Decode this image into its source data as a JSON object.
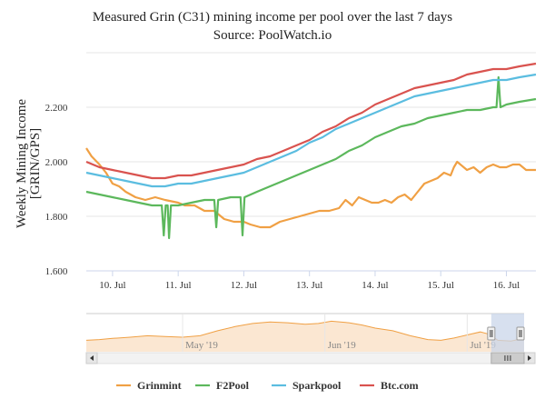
{
  "chart_data": {
    "type": "line",
    "title": "Measured Grin (C31) mining income per pool over the last 7 days",
    "subtitle": "Source: PoolWatch.io",
    "xlabel": "",
    "ylabel": "Weekly Mining Income",
    "ylabel_unit": "[GRIN/GPS]",
    "ylim": [
      1.6,
      2.4
    ],
    "yticks": [
      "1.600",
      "1.800",
      "2.000",
      "2.200"
    ],
    "xlim": [
      9.6,
      16.45
    ],
    "xticks": [
      {
        "x": 10.0,
        "label": "10. Jul"
      },
      {
        "x": 11.0,
        "label": "11. Jul"
      },
      {
        "x": 12.0,
        "label": "12. Jul"
      },
      {
        "x": 13.0,
        "label": "13. Jul"
      },
      {
        "x": 14.0,
        "label": "14. Jul"
      },
      {
        "x": 15.0,
        "label": "15. Jul"
      },
      {
        "x": 16.0,
        "label": "16. Jul"
      }
    ],
    "grid": "horizontal",
    "legend_position": "bottom",
    "series": [
      {
        "name": "Grinmint",
        "color": "#f0a044",
        "points": [
          [
            9.6,
            2.05
          ],
          [
            9.68,
            2.02
          ],
          [
            9.8,
            1.99
          ],
          [
            9.9,
            1.96
          ],
          [
            10.0,
            1.92
          ],
          [
            10.1,
            1.91
          ],
          [
            10.2,
            1.89
          ],
          [
            10.35,
            1.87
          ],
          [
            10.5,
            1.86
          ],
          [
            10.65,
            1.87
          ],
          [
            10.8,
            1.86
          ],
          [
            11.0,
            1.85
          ],
          [
            11.1,
            1.84
          ],
          [
            11.25,
            1.84
          ],
          [
            11.4,
            1.82
          ],
          [
            11.55,
            1.82
          ],
          [
            11.7,
            1.79
          ],
          [
            11.85,
            1.78
          ],
          [
            12.0,
            1.78
          ],
          [
            12.1,
            1.77
          ],
          [
            12.25,
            1.76
          ],
          [
            12.4,
            1.76
          ],
          [
            12.55,
            1.78
          ],
          [
            12.7,
            1.79
          ],
          [
            12.85,
            1.8
          ],
          [
            13.0,
            1.81
          ],
          [
            13.15,
            1.82
          ],
          [
            13.3,
            1.82
          ],
          [
            13.45,
            1.83
          ],
          [
            13.55,
            1.86
          ],
          [
            13.65,
            1.84
          ],
          [
            13.75,
            1.87
          ],
          [
            13.85,
            1.86
          ],
          [
            13.95,
            1.85
          ],
          [
            14.05,
            1.85
          ],
          [
            14.15,
            1.86
          ],
          [
            14.25,
            1.85
          ],
          [
            14.35,
            1.87
          ],
          [
            14.45,
            1.88
          ],
          [
            14.55,
            1.86
          ],
          [
            14.65,
            1.89
          ],
          [
            14.75,
            1.92
          ],
          [
            14.85,
            1.93
          ],
          [
            14.95,
            1.94
          ],
          [
            15.05,
            1.96
          ],
          [
            15.15,
            1.95
          ],
          [
            15.2,
            1.98
          ],
          [
            15.25,
            2.0
          ],
          [
            15.3,
            1.99
          ],
          [
            15.4,
            1.97
          ],
          [
            15.5,
            1.98
          ],
          [
            15.6,
            1.96
          ],
          [
            15.7,
            1.98
          ],
          [
            15.8,
            1.99
          ],
          [
            15.9,
            1.98
          ],
          [
            16.0,
            1.98
          ],
          [
            16.1,
            1.99
          ],
          [
            16.2,
            1.99
          ],
          [
            16.3,
            1.97
          ],
          [
            16.45,
            1.97
          ]
        ]
      },
      {
        "name": "F2Pool",
        "color": "#5cb85c",
        "points": [
          [
            9.6,
            1.89
          ],
          [
            9.8,
            1.88
          ],
          [
            10.0,
            1.87
          ],
          [
            10.2,
            1.86
          ],
          [
            10.4,
            1.85
          ],
          [
            10.6,
            1.84
          ],
          [
            10.75,
            1.84
          ],
          [
            10.78,
            1.73
          ],
          [
            10.81,
            1.84
          ],
          [
            10.84,
            1.84
          ],
          [
            10.86,
            1.72
          ],
          [
            10.89,
            1.84
          ],
          [
            11.0,
            1.84
          ],
          [
            11.2,
            1.85
          ],
          [
            11.4,
            1.86
          ],
          [
            11.55,
            1.86
          ],
          [
            11.58,
            1.76
          ],
          [
            11.61,
            1.86
          ],
          [
            11.8,
            1.87
          ],
          [
            11.95,
            1.87
          ],
          [
            11.98,
            1.73
          ],
          [
            12.01,
            1.87
          ],
          [
            12.2,
            1.89
          ],
          [
            12.4,
            1.91
          ],
          [
            12.6,
            1.93
          ],
          [
            12.8,
            1.95
          ],
          [
            13.0,
            1.97
          ],
          [
            13.2,
            1.99
          ],
          [
            13.4,
            2.01
          ],
          [
            13.6,
            2.04
          ],
          [
            13.8,
            2.06
          ],
          [
            14.0,
            2.09
          ],
          [
            14.2,
            2.11
          ],
          [
            14.4,
            2.13
          ],
          [
            14.6,
            2.14
          ],
          [
            14.8,
            2.16
          ],
          [
            15.0,
            2.17
          ],
          [
            15.2,
            2.18
          ],
          [
            15.4,
            2.19
          ],
          [
            15.6,
            2.19
          ],
          [
            15.8,
            2.2
          ],
          [
            15.85,
            2.2
          ],
          [
            15.88,
            2.31
          ],
          [
            15.91,
            2.2
          ],
          [
            16.0,
            2.21
          ],
          [
            16.2,
            2.22
          ],
          [
            16.45,
            2.23
          ]
        ]
      },
      {
        "name": "Sparkpool",
        "color": "#5bbde0",
        "points": [
          [
            9.6,
            1.96
          ],
          [
            9.8,
            1.95
          ],
          [
            10.0,
            1.94
          ],
          [
            10.2,
            1.93
          ],
          [
            10.4,
            1.92
          ],
          [
            10.6,
            1.91
          ],
          [
            10.8,
            1.91
          ],
          [
            11.0,
            1.92
          ],
          [
            11.2,
            1.92
          ],
          [
            11.4,
            1.93
          ],
          [
            11.6,
            1.94
          ],
          [
            11.8,
            1.95
          ],
          [
            12.0,
            1.96
          ],
          [
            12.2,
            1.98
          ],
          [
            12.4,
            2.0
          ],
          [
            12.6,
            2.02
          ],
          [
            12.8,
            2.04
          ],
          [
            13.0,
            2.07
          ],
          [
            13.2,
            2.09
          ],
          [
            13.4,
            2.12
          ],
          [
            13.6,
            2.14
          ],
          [
            13.8,
            2.16
          ],
          [
            14.0,
            2.18
          ],
          [
            14.2,
            2.2
          ],
          [
            14.4,
            2.22
          ],
          [
            14.6,
            2.24
          ],
          [
            14.8,
            2.25
          ],
          [
            15.0,
            2.26
          ],
          [
            15.2,
            2.27
          ],
          [
            15.4,
            2.28
          ],
          [
            15.6,
            2.29
          ],
          [
            15.8,
            2.3
          ],
          [
            16.0,
            2.3
          ],
          [
            16.2,
            2.31
          ],
          [
            16.45,
            2.32
          ]
        ]
      },
      {
        "name": "Btc.com",
        "color": "#d9534f",
        "points": [
          [
            9.6,
            2.0
          ],
          [
            9.8,
            1.98
          ],
          [
            10.0,
            1.97
          ],
          [
            10.2,
            1.96
          ],
          [
            10.4,
            1.95
          ],
          [
            10.6,
            1.94
          ],
          [
            10.8,
            1.94
          ],
          [
            11.0,
            1.95
          ],
          [
            11.2,
            1.95
          ],
          [
            11.4,
            1.96
          ],
          [
            11.6,
            1.97
          ],
          [
            11.8,
            1.98
          ],
          [
            12.0,
            1.99
          ],
          [
            12.2,
            2.01
          ],
          [
            12.4,
            2.02
          ],
          [
            12.6,
            2.04
          ],
          [
            12.8,
            2.06
          ],
          [
            13.0,
            2.08
          ],
          [
            13.2,
            2.11
          ],
          [
            13.4,
            2.13
          ],
          [
            13.6,
            2.16
          ],
          [
            13.8,
            2.18
          ],
          [
            14.0,
            2.21
          ],
          [
            14.2,
            2.23
          ],
          [
            14.4,
            2.25
          ],
          [
            14.6,
            2.27
          ],
          [
            14.8,
            2.28
          ],
          [
            15.0,
            2.29
          ],
          [
            15.2,
            2.3
          ],
          [
            15.4,
            2.32
          ],
          [
            15.6,
            2.33
          ],
          [
            15.8,
            2.34
          ],
          [
            16.0,
            2.34
          ],
          [
            16.2,
            2.35
          ],
          [
            16.45,
            2.36
          ]
        ]
      }
    ],
    "navigator": {
      "xticks": [
        {
          "x": 0.22,
          "label": "May '19"
        },
        {
          "x": 0.545,
          "label": "Jun '19"
        },
        {
          "x": 0.87,
          "label": "Jul '19"
        }
      ],
      "selection_start": 0.925,
      "selection_end": 1.0,
      "series": [
        [
          0,
          0.3
        ],
        [
          0.03,
          0.32
        ],
        [
          0.06,
          0.35
        ],
        [
          0.1,
          0.38
        ],
        [
          0.14,
          0.42
        ],
        [
          0.18,
          0.4
        ],
        [
          0.22,
          0.38
        ],
        [
          0.26,
          0.42
        ],
        [
          0.3,
          0.55
        ],
        [
          0.34,
          0.66
        ],
        [
          0.38,
          0.74
        ],
        [
          0.42,
          0.78
        ],
        [
          0.46,
          0.76
        ],
        [
          0.5,
          0.72
        ],
        [
          0.53,
          0.74
        ],
        [
          0.56,
          0.8
        ],
        [
          0.6,
          0.76
        ],
        [
          0.63,
          0.7
        ],
        [
          0.66,
          0.62
        ],
        [
          0.7,
          0.55
        ],
        [
          0.74,
          0.42
        ],
        [
          0.78,
          0.32
        ],
        [
          0.81,
          0.3
        ],
        [
          0.84,
          0.36
        ],
        [
          0.87,
          0.44
        ],
        [
          0.9,
          0.52
        ],
        [
          0.92,
          0.46
        ],
        [
          0.94,
          0.3
        ],
        [
          0.97,
          0.28
        ],
        [
          1.0,
          0.35
        ]
      ]
    }
  },
  "colors": {
    "grid": "#e6e6e6",
    "navigator_fill": "#fbe7d2",
    "navigator_line": "#f0a044",
    "navigator_mask": "#c9d6ea"
  }
}
